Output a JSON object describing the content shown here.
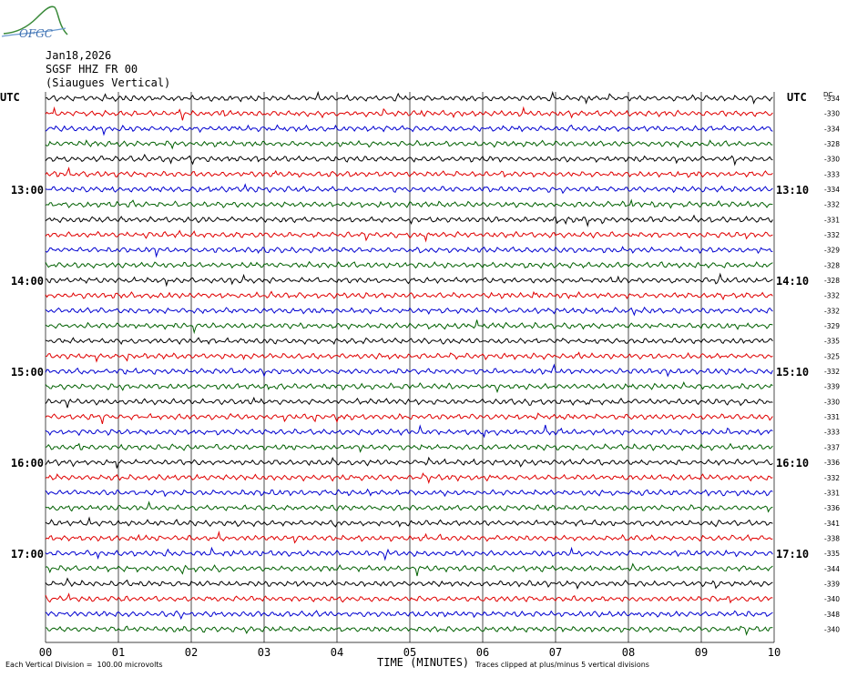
{
  "header": {
    "logo_text": "OFGC",
    "date": "Jan18,2026",
    "station": "SGSF HHZ FR 00",
    "site": "(Siaugues Vertical)"
  },
  "labels": {
    "utc_left": "UTC",
    "utc_right": "UTC",
    "dc": "DC",
    "x_title": "TIME (MINUTES)",
    "footer_left": "Each Vertical Division =  100.00 microvolts",
    "footer_right": "Traces clipped at plus/minus 5 vertical divisions"
  },
  "chart_data": {
    "type": "line",
    "title": "SGSF HHZ FR 00",
    "xlabel": "TIME (MINUTES)",
    "xlim": [
      0,
      10
    ],
    "x_ticks": [
      "00",
      "01",
      "02",
      "03",
      "04",
      "05",
      "06",
      "07",
      "08",
      "09",
      "10"
    ],
    "rows": 36,
    "trace_colors": [
      "#000000",
      "#e00000",
      "#0000d0",
      "#006000"
    ],
    "left_time_labels": [
      {
        "row": 6,
        "label": "13:00"
      },
      {
        "row": 12,
        "label": "14:00"
      },
      {
        "row": 18,
        "label": "15:00"
      },
      {
        "row": 24,
        "label": "16:00"
      },
      {
        "row": 30,
        "label": "17:00"
      }
    ],
    "right_time_labels": [
      {
        "row": 6,
        "label": "13:10"
      },
      {
        "row": 12,
        "label": "14:10"
      },
      {
        "row": 18,
        "label": "15:10"
      },
      {
        "row": 24,
        "label": "16:10"
      },
      {
        "row": 30,
        "label": "17:10"
      }
    ],
    "dc_offsets": [
      -334,
      -330,
      -334,
      -328,
      -330,
      -333,
      -334,
      -332,
      -331,
      -332,
      -329,
      -328,
      -328,
      -332,
      -332,
      -329,
      -335,
      -325,
      -332,
      -339,
      -330,
      -331,
      -333,
      -337,
      -336,
      -332,
      -331,
      -336,
      -341,
      -338,
      -335,
      -344,
      -339,
      -340,
      -348,
      -340
    ]
  }
}
